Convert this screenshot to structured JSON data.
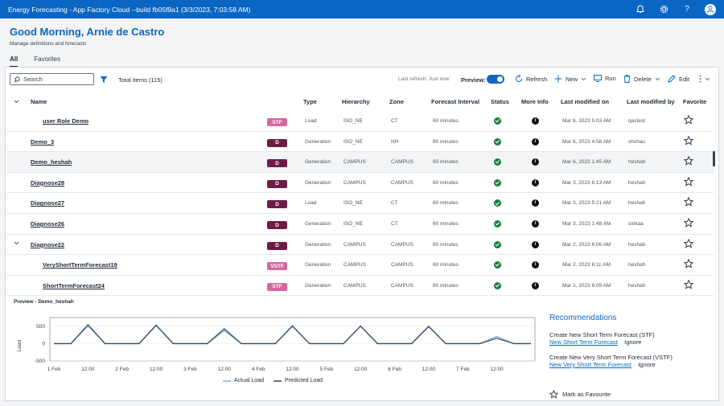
{
  "app": {
    "title": "Energy Forecasting - App Factory Cloud --build fb05f9a1 (3/3/2023, 7:03:58 AM)",
    "greeting": "Good Morning, Arnie de Castro",
    "subtitle": "Manage definitions and forecasts"
  },
  "tabs": [
    "All",
    "Favorites"
  ],
  "toolbar": {
    "search_placeholder": "Search",
    "total": "Total items (115)",
    "last_refresh": "Last refresh: Just now",
    "preview": "Preview:",
    "refresh": "Refresh",
    "new": "New",
    "run": "Run",
    "delete": "Delete",
    "edit": "Edit"
  },
  "columns": [
    "Name",
    "Type",
    "Hierarchy",
    "Zone",
    "Forecast Interval",
    "Status",
    "More Info",
    "Last modified on",
    "Last modified by",
    "Favorite"
  ],
  "rows": [
    {
      "name": "user Role Demo",
      "badge": "STF",
      "type": "Load",
      "hierarchy": "ISO_NE",
      "zone": "CT",
      "interval": "60 minutes",
      "modified": "Mar 6, 2023 5:03 AM",
      "by": "qastest"
    },
    {
      "name": "Demo_3",
      "badge": "D",
      "type": "Generation",
      "hierarchy": "ISO_NE",
      "zone": "NH",
      "interval": "60 minutes",
      "modified": "Mar 6, 2023 4:58 AM",
      "by": "shchau"
    },
    {
      "name": "Demo_heshah",
      "badge": "D",
      "type": "Generation",
      "hierarchy": "CAMPUS",
      "zone": "CAMPUS",
      "interval": "60 minutes",
      "modified": "Mar 6, 2023 1:45 AM",
      "by": "heshah"
    },
    {
      "name": "Diagnose28",
      "badge": "D",
      "type": "Generation",
      "hierarchy": "CAMPUS",
      "zone": "CAMPUS",
      "interval": "60 minutes",
      "modified": "Mar 3, 2023 6:13 AM",
      "by": "heshah"
    },
    {
      "name": "Diagnose27",
      "badge": "D",
      "type": "Load",
      "hierarchy": "ISO_NE",
      "zone": "CT",
      "interval": "60 minutes",
      "modified": "Mar 3, 2023 5:21 AM",
      "by": "heshah"
    },
    {
      "name": "Diagnose26",
      "badge": "D",
      "type": "Generation",
      "hierarchy": "ISO_NE",
      "zone": "CT",
      "interval": "60 minutes",
      "modified": "Mar 3, 2023 1:48 AM",
      "by": "sinkaa"
    },
    {
      "name": "Diagnose22",
      "badge": "D",
      "type": "Generation",
      "hierarchy": "CAMPUS",
      "zone": "CAMPUS",
      "interval": "60 minutes",
      "modified": "Mar 2, 2023 6:06 AM",
      "by": "heshah"
    },
    {
      "name": "VeryShortTermForecast19",
      "badge": "VSTF",
      "type": "Generation",
      "hierarchy": "CAMPUS",
      "zone": "CAMPUS",
      "interval": "60 minutes",
      "modified": "Mar 2, 2023 6:11 AM",
      "by": "heshah"
    },
    {
      "name": "ShortTermForecast24",
      "badge": "STF",
      "type": "Generation",
      "hierarchy": "CAMPUS",
      "zone": "CAMPUS",
      "interval": "60 minutes",
      "modified": "Mar 2, 2023 6:09 AM",
      "by": "heshah"
    }
  ],
  "preview": {
    "label": "Preview - Demo_heshah",
    "ylabel": "Load",
    "yticks": [
      "500",
      "0",
      "-500"
    ],
    "xticks": [
      "1 Feb",
      "12:00",
      "2 Feb",
      "12:00",
      "3 Feb",
      "12:00",
      "4 Feb",
      "12:00",
      "5 Feb",
      "12:00",
      "6 Feb",
      "12:00",
      "7 Feb",
      "12:00"
    ],
    "legend": [
      "Actual Load",
      "Predicted Load"
    ],
    "colors": {
      "actual": "#7fb2dc",
      "predicted": "#3a4252"
    }
  },
  "chart_data": {
    "type": "line",
    "title": "Preview - Demo_heshah",
    "xlabel": "",
    "ylabel": "Load",
    "ylim": [
      -500,
      750
    ],
    "x_start": "1 Feb 00:00",
    "x_step_hours": 6,
    "x": [
      "1 Feb 00:00",
      "1 Feb 06:00",
      "1 Feb 12:00",
      "1 Feb 18:00",
      "2 Feb 00:00",
      "2 Feb 06:00",
      "2 Feb 12:00",
      "2 Feb 18:00",
      "3 Feb 00:00",
      "3 Feb 06:00",
      "3 Feb 12:00",
      "3 Feb 18:00",
      "4 Feb 00:00",
      "4 Feb 06:00",
      "4 Feb 12:00",
      "4 Feb 18:00",
      "5 Feb 00:00",
      "5 Feb 06:00",
      "5 Feb 12:00",
      "5 Feb 18:00",
      "6 Feb 00:00",
      "6 Feb 06:00",
      "6 Feb 12:00",
      "6 Feb 18:00",
      "7 Feb 00:00",
      "7 Feb 06:00",
      "7 Feb 12:00",
      "7 Feb 18:00",
      "8 Feb 00:00"
    ],
    "series": [
      {
        "name": "Actual Load",
        "values": [
          0,
          0,
          560,
          0,
          0,
          0,
          540,
          0,
          0,
          0,
          380,
          0,
          0,
          0,
          520,
          0,
          0,
          0,
          510,
          0,
          0,
          0,
          500,
          0,
          0,
          0,
          200,
          0,
          0
        ]
      },
      {
        "name": "Predicted Load",
        "values": [
          0,
          0,
          520,
          0,
          0,
          0,
          520,
          0,
          0,
          0,
          430,
          0,
          0,
          0,
          500,
          0,
          0,
          0,
          500,
          0,
          0,
          0,
          490,
          0,
          0,
          0,
          150,
          0,
          0
        ]
      }
    ]
  },
  "recommendations": {
    "title": "Recommendations",
    "items": [
      {
        "text": "Create New Short Term Forecast (STF)",
        "link": "New Short Term Forecast",
        "ignore": "Ignore"
      },
      {
        "text": "Create New Very Short Term Forecast (VSTF)",
        "link": "New Very Short Term Forecast",
        "ignore": "Ignore"
      }
    ],
    "mark_fav": "Mark as Favourite"
  }
}
